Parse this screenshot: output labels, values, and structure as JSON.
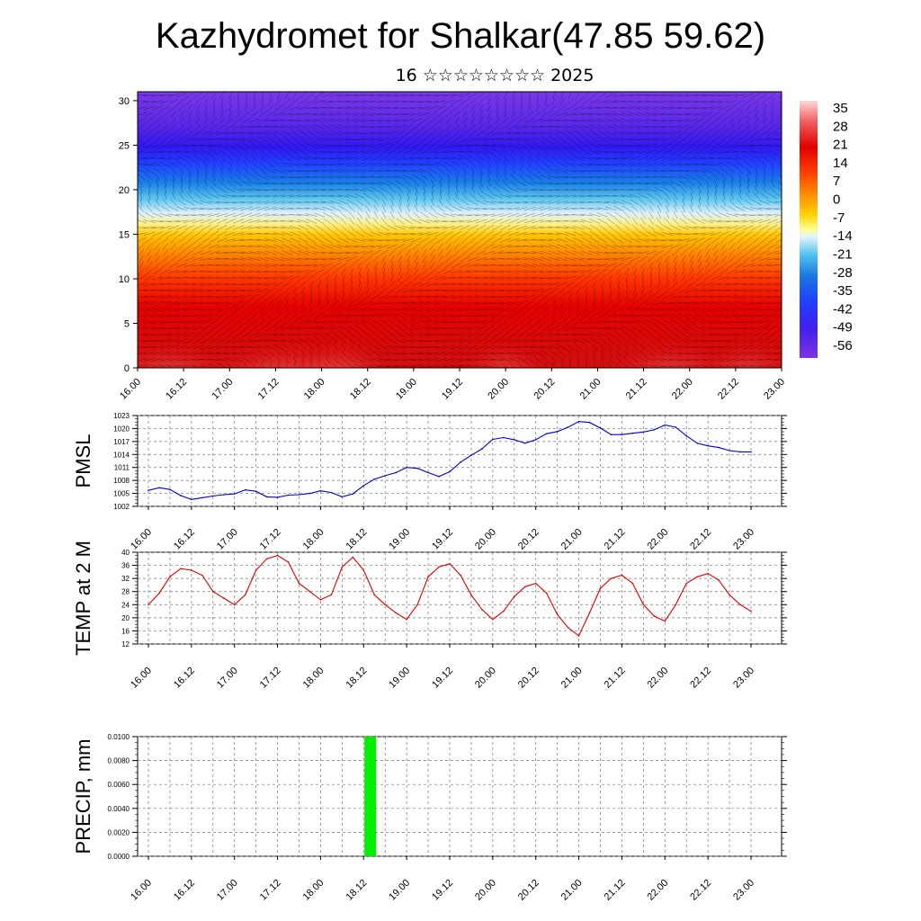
{
  "title": "Kazhydromet for Shalkar(47.85 59.62)",
  "subtitle": "16 ☆☆☆☆☆☆☆☆ 2025",
  "time_labels": [
    "16.00",
    "16.12",
    "17.00",
    "17.12",
    "18.00",
    "18.12",
    "19.00",
    "19.12",
    "20.00",
    "20.12",
    "21.00",
    "21.12",
    "22.00",
    "22.12",
    "23.00"
  ],
  "chart_data": [
    {
      "type": "heatmap",
      "ylim": [
        0,
        31
      ],
      "y_ticks": [
        "0",
        "5",
        "10",
        "15",
        "20",
        "25",
        "30"
      ],
      "colorbar": {
        "labels": [
          "35",
          "28",
          "21",
          "14",
          "7",
          "0",
          "-7",
          "-14",
          "-21",
          "-28",
          "-35",
          "-42",
          "-49",
          "-56"
        ],
        "colors": [
          "#ffd0d0",
          "#f06060",
          "#e00000",
          "#ff4000",
          "#ff8a00",
          "#ffd000",
          "#ffff80",
          "#d0f0ff",
          "#40c0f0",
          "#1070e0",
          "#2040ff",
          "#4020f0",
          "#6020e0",
          "#8030e0"
        ]
      },
      "overlay": "wind vectors"
    },
    {
      "type": "line",
      "ylabel": "PMSL",
      "ylim": [
        1002,
        1023
      ],
      "y_ticks": [
        "1002",
        "1005",
        "1008",
        "1011",
        "1014",
        "1017",
        "1020",
        "1023"
      ],
      "color": "#0000cc",
      "x": [
        0,
        3,
        6,
        9,
        12,
        15,
        18,
        21,
        24,
        27,
        30,
        33,
        36,
        39,
        42,
        45,
        48,
        51,
        54,
        57,
        60,
        63,
        66,
        69,
        72,
        75,
        78,
        81,
        84,
        87,
        90,
        93,
        96,
        99,
        102,
        105,
        108,
        111,
        114,
        117,
        120,
        123,
        126,
        129,
        132,
        135,
        138,
        141,
        144,
        147,
        150,
        153,
        156,
        159,
        162,
        165,
        168
      ],
      "values": [
        1005.7,
        1006.3,
        1005.9,
        1004.5,
        1003.6,
        1004.0,
        1004.4,
        1004.7,
        1004.9,
        1005.8,
        1005.5,
        1004.2,
        1004.1,
        1004.6,
        1004.7,
        1005.0,
        1005.6,
        1005.2,
        1004.2,
        1004.9,
        1006.8,
        1008.3,
        1009.1,
        1009.8,
        1011.0,
        1010.8,
        1009.8,
        1008.9,
        1010.0,
        1012.2,
        1013.8,
        1015.3,
        1017.5,
        1017.9,
        1017.4,
        1016.6,
        1017.4,
        1018.8,
        1019.3,
        1020.3,
        1021.6,
        1021.4,
        1020.1,
        1018.6,
        1018.6,
        1018.9,
        1019.2,
        1019.7,
        1020.8,
        1020.3,
        1018.3,
        1016.6,
        1016.0,
        1015.6,
        1014.9,
        1014.6,
        1014.6
      ]
    },
    {
      "type": "line",
      "ylabel": "TEMP at 2 M",
      "ylim": [
        12,
        40
      ],
      "y_ticks": [
        "12",
        "16",
        "20",
        "24",
        "28",
        "32",
        "36",
        "40"
      ],
      "color": "#dd0000",
      "x": [
        0,
        3,
        6,
        9,
        12,
        15,
        18,
        21,
        24,
        27,
        30,
        33,
        36,
        39,
        42,
        45,
        48,
        51,
        54,
        57,
        60,
        63,
        66,
        69,
        72,
        75,
        78,
        81,
        84,
        87,
        90,
        93,
        96,
        99,
        102,
        105,
        108,
        111,
        114,
        117,
        120,
        123,
        126,
        129,
        132,
        135,
        138,
        141,
        144,
        147,
        150,
        153,
        156,
        159,
        162,
        165,
        168
      ],
      "values": [
        24.0,
        27.5,
        32.5,
        35.0,
        34.5,
        33.0,
        28.0,
        26.0,
        24.0,
        27.0,
        34.5,
        38.0,
        39.0,
        37.0,
        30.5,
        28.0,
        25.5,
        27.0,
        35.5,
        38.5,
        34.5,
        27.0,
        24.0,
        21.5,
        19.5,
        24.0,
        32.5,
        35.5,
        36.5,
        33.0,
        27.0,
        22.5,
        19.5,
        22.0,
        26.5,
        29.5,
        30.5,
        27.5,
        21.0,
        17.0,
        14.5,
        21.5,
        29.0,
        32.0,
        33.0,
        30.5,
        24.0,
        20.5,
        19.0,
        24.0,
        30.5,
        32.5,
        33.5,
        31.5,
        27.0,
        24.0,
        22.0
      ]
    },
    {
      "type": "bar",
      "ylabel": "PRECIP, mm",
      "ylim": [
        0,
        0.01
      ],
      "y_ticks": [
        "0.0000",
        "0.0020",
        "0.0040",
        "0.0060",
        "0.0080",
        "0.0100"
      ],
      "color": "#00ee00",
      "x": [
        63
      ],
      "values": [
        0.01
      ]
    }
  ]
}
